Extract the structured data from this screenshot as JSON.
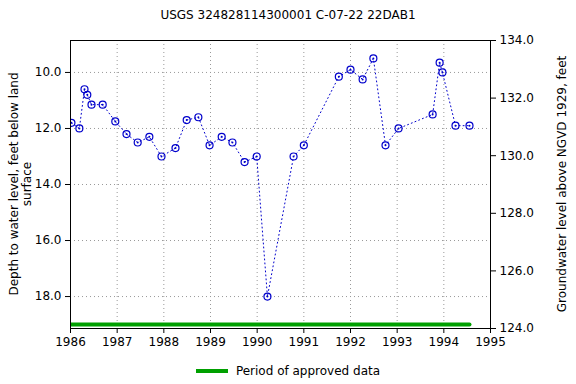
{
  "chart_data": {
    "type": "line",
    "title": "USGS 324828114300001 C-07-22 22DAB1",
    "y_label": "Depth to water level, feet below land\nsurface",
    "y2_label": "Groundwater level above NGVD 1929, feet",
    "xlim": [
      1986,
      1995
    ],
    "xticks": [
      1986,
      1987,
      1988,
      1989,
      1990,
      1991,
      1992,
      1993,
      1994,
      1995
    ],
    "ylim": [
      19.14,
      8.86
    ],
    "yticks": [
      {
        "value": 10,
        "label": "10.0"
      },
      {
        "value": 12,
        "label": "12.0"
      },
      {
        "value": 14,
        "label": "14.0"
      },
      {
        "value": 16,
        "label": "16.0"
      },
      {
        "value": 18,
        "label": "18.0"
      }
    ],
    "y2lim": [
      124,
      134
    ],
    "y2ticks": [
      {
        "value": 124,
        "label": "124.0"
      },
      {
        "value": 126,
        "label": "126.0"
      },
      {
        "value": 128,
        "label": "128.0"
      },
      {
        "value": 130,
        "label": "130.0"
      },
      {
        "value": 132,
        "label": "132.0"
      },
      {
        "value": 134,
        "label": "134.0"
      }
    ],
    "grid": true,
    "series": [
      {
        "color": "#0000cc",
        "marker": "circle",
        "line_style": "dotted",
        "x": [
          1986.02,
          1986.19,
          1986.3,
          1986.36,
          1986.45,
          1986.69,
          1986.96,
          1987.2,
          1987.44,
          1987.69,
          1987.95,
          1988.25,
          1988.49,
          1988.74,
          1988.98,
          1989.24,
          1989.47,
          1989.73,
          1989.99,
          1990.22,
          1990.78,
          1991.0,
          1991.75,
          1992.0,
          1992.26,
          1992.49,
          1992.75,
          1993.03,
          1993.76,
          1993.91,
          1993.97,
          1994.25,
          1994.55
        ],
        "values": [
          11.8,
          12.0,
          10.6,
          10.8,
          11.15,
          11.15,
          11.75,
          12.2,
          12.5,
          12.3,
          13.0,
          12.7,
          11.7,
          11.6,
          12.6,
          12.3,
          12.5,
          13.2,
          13.0,
          18.0,
          13.0,
          12.6,
          10.15,
          9.9,
          10.25,
          9.5,
          12.6,
          12.0,
          11.5,
          9.65,
          10.0,
          11.9,
          11.9
        ]
      },
      {
        "name": "Period of approved data",
        "color": "#00a000",
        "line_style": "solid",
        "x": [
          1986.0,
          1994.55
        ],
        "values": [
          19.0,
          19.0
        ]
      }
    ],
    "legend": "bottom"
  }
}
